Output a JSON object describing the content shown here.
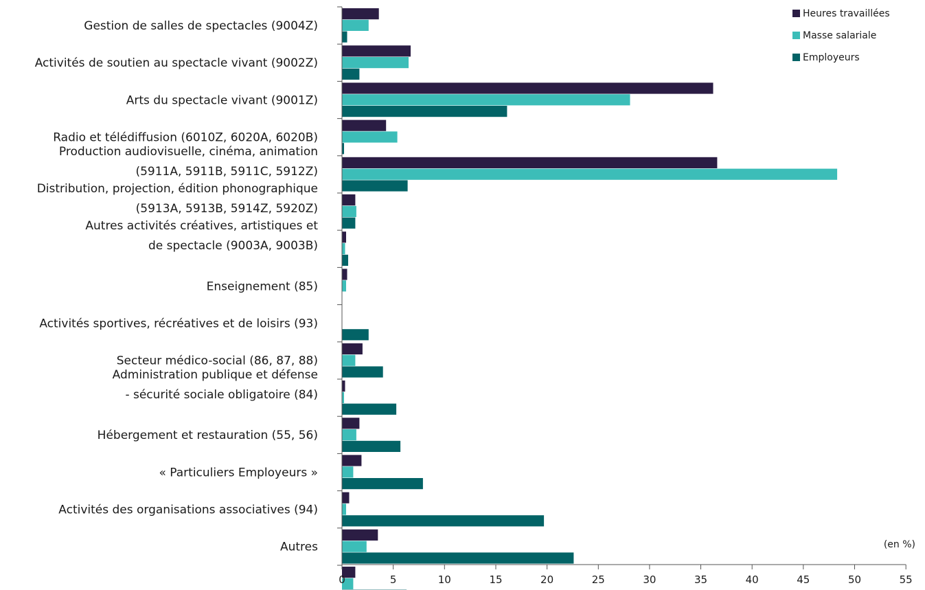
{
  "chart_data": {
    "type": "bar",
    "orientation": "horizontal",
    "unit_label": "(en %)",
    "categories": [
      "Gestion de salles de spectacles (9004Z)",
      "Activités de soutien au spectacle vivant (9002Z)",
      "Arts du spectacle vivant (9001Z)",
      "Radio et télédiffusion (6010Z, 6020A, 6020B)",
      "Production audiovisuelle, cinéma, animation|(5911A, 5911B, 5911C, 5912Z)",
      "Distribution, projection, édition phonographique|(5913A, 5913B, 5914Z, 5920Z)",
      "Autres activités créatives, artistiques et|de spectacle (9003A, 9003B)",
      "Enseignement (85)",
      "Activités sportives, récréatives et de loisirs (93)",
      "Secteur médico-social (86, 87, 88)",
      "Administration publique et défense|- sécurité sociale obligatoire (84)",
      "Hébergement et restauration (55, 56)",
      "« Particuliers Employeurs »",
      "Activités des organisations associatives (94)",
      "Autres",
      ""
    ],
    "series": [
      {
        "name": "Heures travaillées",
        "color": "#2b1d44",
        "values": [
          3.6,
          6.7,
          36.2,
          4.3,
          36.6,
          1.3,
          0.4,
          0.5,
          0.0,
          2.0,
          0.3,
          1.7,
          1.9,
          0.7,
          3.5,
          1.3
        ]
      },
      {
        "name": "Masse salariale",
        "color": "#3cbdb8",
        "values": [
          2.6,
          6.5,
          28.1,
          5.4,
          48.3,
          1.4,
          0.3,
          0.4,
          0.0,
          1.3,
          0.2,
          1.4,
          1.1,
          0.4,
          2.4,
          1.1
        ]
      },
      {
        "name": "Employeurs",
        "color": "#036366",
        "values": [
          0.5,
          1.7,
          16.1,
          0.2,
          6.4,
          1.3,
          0.6,
          0.0,
          2.6,
          4.0,
          5.3,
          5.7,
          7.9,
          19.7,
          22.6,
          6.3
        ]
      }
    ],
    "xlim": [
      0,
      55
    ],
    "xticks": [
      0,
      5,
      10,
      15,
      20,
      25,
      30,
      35,
      40,
      45,
      50,
      55
    ],
    "legend": "top-right",
    "grid": false
  }
}
